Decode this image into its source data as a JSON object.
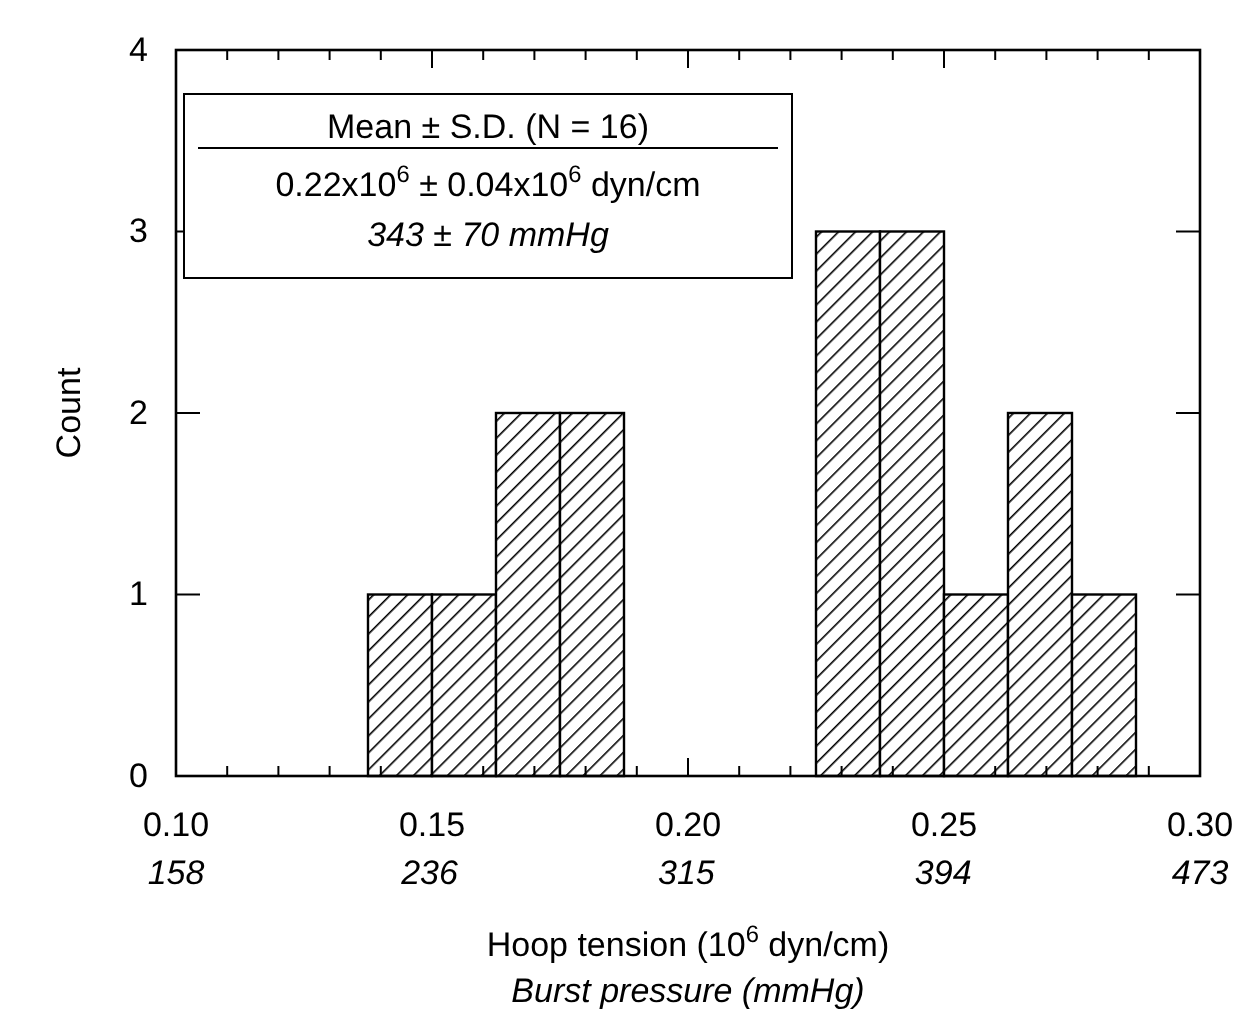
{
  "chart_data": {
    "type": "histogram",
    "bins": [
      0.1375,
      0.15,
      0.1625,
      0.175,
      0.1875,
      0.2,
      0.2125,
      0.225,
      0.2375,
      0.25,
      0.2625,
      0.275,
      0.2875
    ],
    "values": [
      1,
      1,
      2,
      2,
      0,
      0,
      0,
      3,
      3,
      1,
      2,
      1
    ],
    "color": "#000000",
    "xlabel": "Hoop tension (10$^{6}$ dyn/cm)",
    "ylabel": "Count",
    "x2label": "Burst pressure (mmHg)",
    "xlim": [
      0.1,
      0.3
    ],
    "xticks": [
      {
        "value": 0.1,
        "label": "0.10"
      },
      {
        "value": 0.11,
        "label": null
      },
      {
        "value": 0.12,
        "label": null
      },
      {
        "value": 0.13,
        "label": null
      },
      {
        "value": 0.14,
        "label": null
      },
      0.15,
      {
        "value": 0.16,
        "label": null
      },
      {
        "value": 0.17,
        "label": null
      },
      {
        "value": 0.18,
        "label": null
      },
      {
        "value": 0.19,
        "label": null
      },
      {
        "value": 0.2,
        "label": "0.20"
      },
      {
        "value": 0.21,
        "label": null
      },
      {
        "value": 0.22,
        "label": null
      },
      {
        "value": 0.23,
        "label": null
      },
      {
        "value": 0.24,
        "label": null
      },
      0.25,
      {
        "value": 0.26,
        "label": null
      },
      {
        "value": 0.27,
        "label": null
      },
      {
        "value": 0.28,
        "label": null
      },
      {
        "value": 0.29,
        "label": null
      },
      {
        "value": 0.3,
        "label": "0.30"
      }
    ],
    "x2lim": [
      158,
      473
    ],
    "x2ticks": [
      158,
      236,
      315,
      394,
      473
    ],
    "ylim": [
      0,
      4
    ],
    "yticks": [
      0,
      1,
      2,
      3,
      4
    ],
    "annotations": [
      "Mean ± S.D.  (N = 16)",
      "0.22x10$^{6}$ ± 0.04x10$^{6}$  dyn/cm",
      "343 ± 70  mmHg"
    ]
  }
}
